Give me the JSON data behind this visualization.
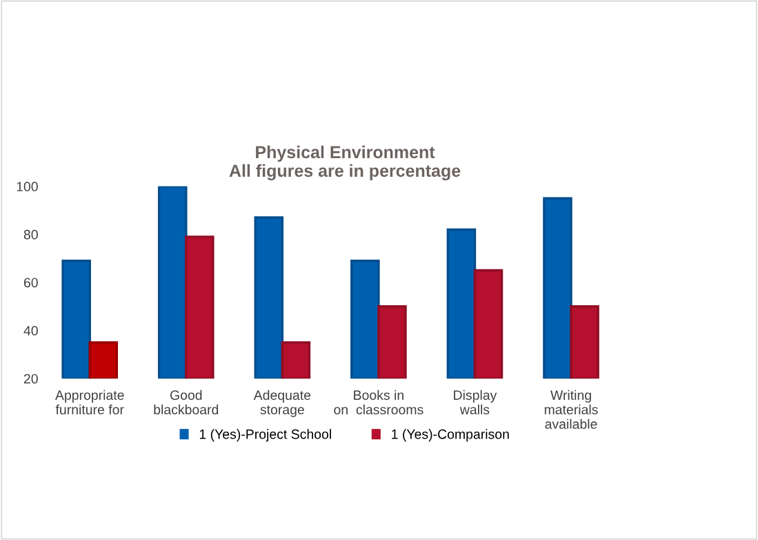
{
  "chart_data": {
    "type": "bar",
    "title": "Physical Environment\nAll figures are in percentage",
    "categories": [
      "Appropriate\nfurniture for",
      "Good\nblackboard",
      "Adequate\nstorage",
      "Books in\non  classrooms",
      "Display\nwalls",
      "Writing\nmaterials\navailable"
    ],
    "series": [
      {
        "name": "1 (Yes)-Project School",
        "color": "#0060b0",
        "values": [
          69,
          100,
          87,
          69,
          82,
          95
        ]
      },
      {
        "name": "1 (Yes)-Comparison",
        "color": "#b5102e",
        "colors": [
          "#c00000",
          "#b5102e",
          "#b5102e",
          "#b5102e",
          "#b5102e",
          "#b5102e"
        ],
        "values": [
          35,
          79,
          35,
          50,
          65,
          50
        ]
      }
    ],
    "ylim": [
      20,
      100
    ],
    "yticks": [
      20,
      40,
      60,
      80,
      100
    ],
    "grid": false,
    "legend": "bottom"
  }
}
